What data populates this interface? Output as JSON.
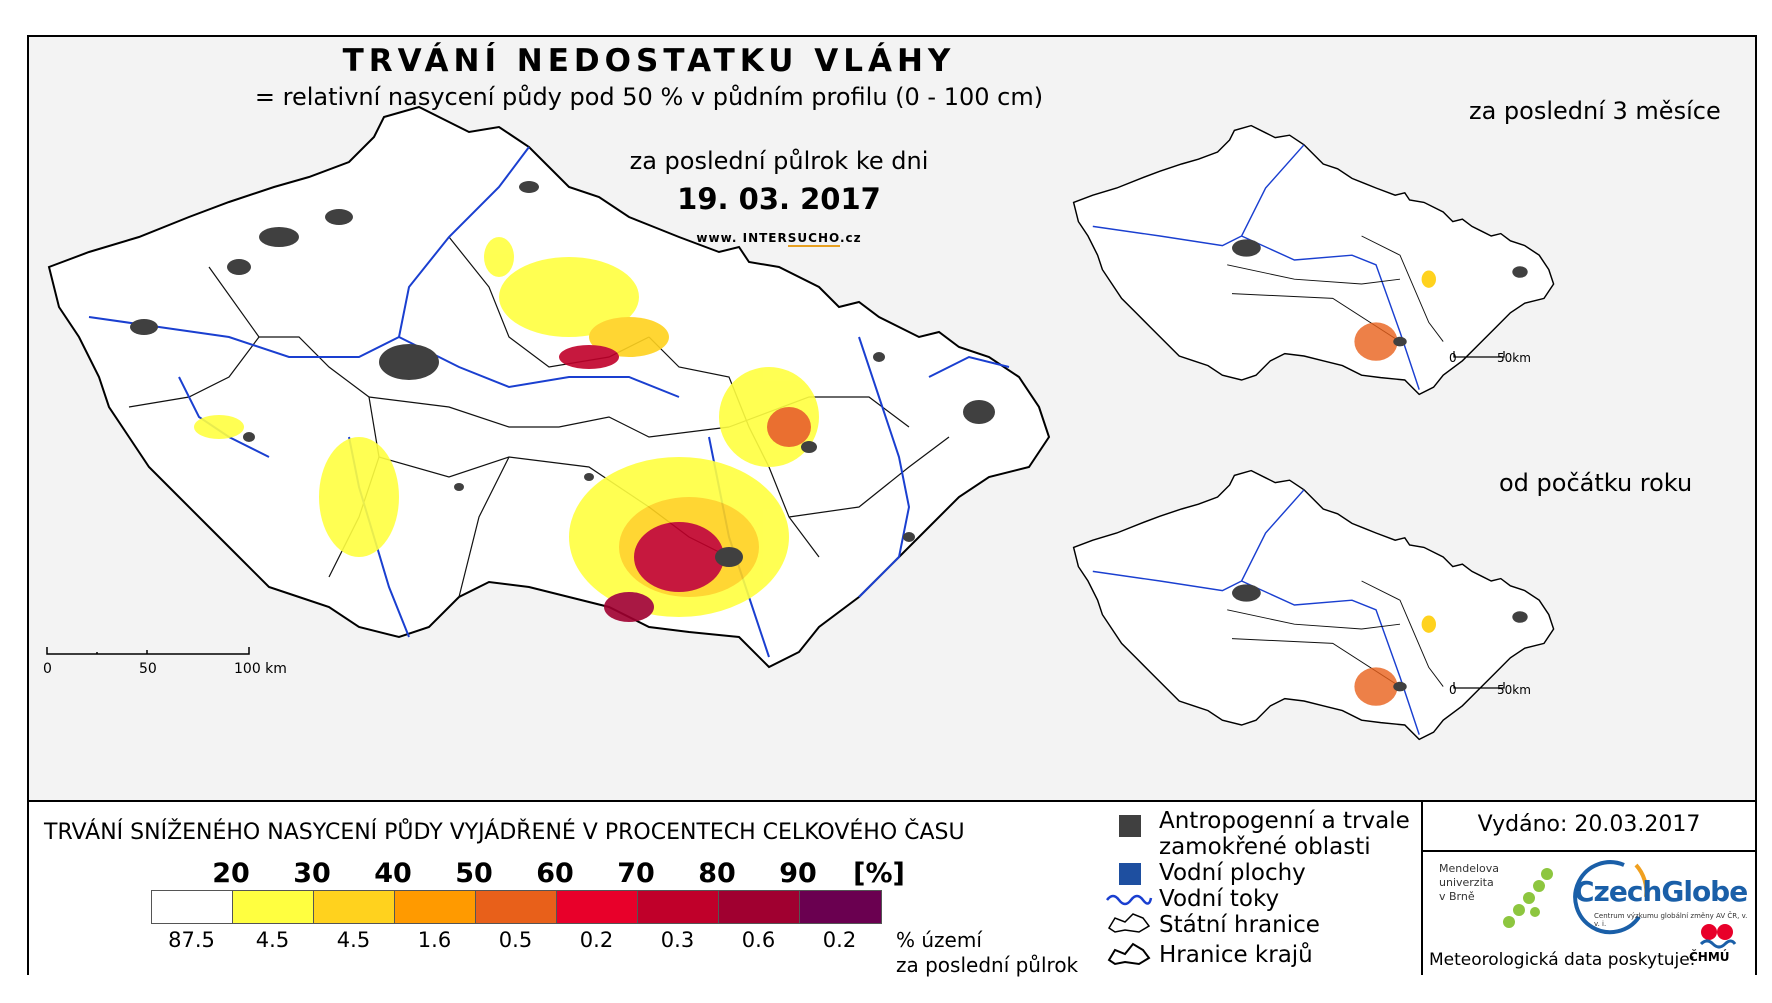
{
  "title": "TRVÁNÍ NEDOSTATKU VLÁHY",
  "subtitle": "= relativní nasycení půdy pod 50 % v půdním profilu (0 - 100 cm)",
  "period": "za poslední půlrok ke dni",
  "date": "19. 03. 2017",
  "website": {
    "prefix": "www. INTER",
    "mid": "SUCHO",
    "suffix": ".cz"
  },
  "insets": [
    {
      "title": "za poslední 3 měsíce",
      "scale_zero": "0",
      "scale_end": "50km"
    },
    {
      "title": "od počátku roku",
      "scale_zero": "0",
      "scale_end": "50km"
    }
  ],
  "main_scale": {
    "zero": "0",
    "mid": "50",
    "end": "100 km"
  },
  "legend": {
    "title": "TRVÁNÍ SNÍŽENÉHO NASYCENÍ PŮDY VYJÁDŘENÉ V PROCENTECH CELKOVÉHO ČASU",
    "thresholds": [
      "20",
      "30",
      "40",
      "50",
      "60",
      "70",
      "80",
      "90",
      "[%]"
    ],
    "colors": [
      "#ffffff",
      "#ffff40",
      "#ffd21e",
      "#ff9a00",
      "#e8601a",
      "#e8002a",
      "#c0002a",
      "#a00030",
      "#6a0050"
    ],
    "percentages": [
      "87.5",
      "4.5",
      "4.5",
      "1.6",
      "0.5",
      "0.2",
      "0.3",
      "0.6",
      "0.2"
    ],
    "percent_label_line1": "% území",
    "percent_label_line2": "za poslední půlrok"
  },
  "symbols": {
    "anthropogenic_line1": "Antropogenní a trvale",
    "anthropogenic_line2": "zamokřené oblasti",
    "water_bodies": "Vodní plochy",
    "rivers": "Vodní toky",
    "state_border": "Státní hranice",
    "regions_border": "Hranice krajů",
    "anthropogenic_color": "#404040",
    "water_color": "#1e4fa0",
    "river_color": "#1a3fd0"
  },
  "issued": "Vydáno: 20.03.2017",
  "mendel": {
    "line1": "Mendelova",
    "line2": "univerzita",
    "line3": "v Brně"
  },
  "czechglobe": "CzechGlobe",
  "czechglobe_sub": "Centrum výzkumu globální změny AV ČR, v. v. i.",
  "meteo": "Meteorologická data poskytuje:",
  "chmu": "ČHMÚ"
}
